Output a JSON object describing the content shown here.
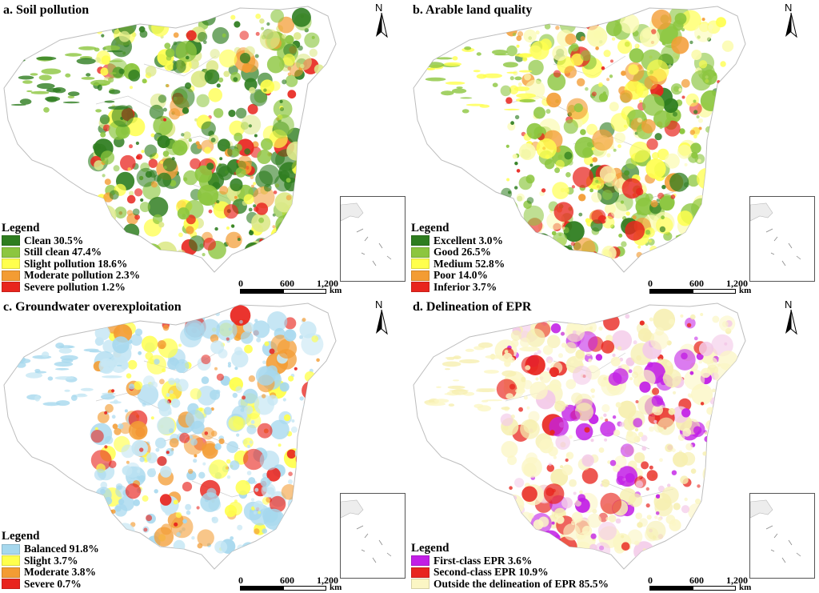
{
  "panels": [
    {
      "title": "a. Soil pollution",
      "legend_title": "Legend",
      "legend": [
        {
          "label": "Clean 30.5%",
          "color": "#2e7d1f"
        },
        {
          "label": "Still clean 47.4%",
          "color": "#8cc63f"
        },
        {
          "label": "Slight pollution 18.6%",
          "color": "#ffff4d"
        },
        {
          "label": "Moderate pollution 2.3%",
          "color": "#f39c34"
        },
        {
          "label": "Severe pollution 1.2%",
          "color": "#e8251e"
        }
      ],
      "palette": [
        "#2e7d1f",
        "#8cc63f",
        "#dde98a",
        "#ffff4d",
        "#f39c34",
        "#e8251e"
      ]
    },
    {
      "title": "b. Arable land quality",
      "legend_title": "Legend",
      "legend": [
        {
          "label": "Excellent 3.0%",
          "color": "#2e7d1f"
        },
        {
          "label": "Good 26.5%",
          "color": "#8cc63f"
        },
        {
          "label": "Medium 52.8%",
          "color": "#ffff4d"
        },
        {
          "label": "Poor 14.0%",
          "color": "#f39c34"
        },
        {
          "label": "Inferior 3.7%",
          "color": "#e8251e"
        }
      ],
      "palette": [
        "#8cc63f",
        "#ffff4d",
        "#fbfbb0",
        "#f39c34",
        "#e8251e",
        "#2e7d1f"
      ]
    },
    {
      "title": "c. Groundwater overexploitation",
      "legend_title": "Legend",
      "legend": [
        {
          "label": "Balanced 91.8%",
          "color": "#a6d8ee"
        },
        {
          "label": "Slight 3.7%",
          "color": "#ffff4d"
        },
        {
          "label": "Moderate 3.8%",
          "color": "#f39c34"
        },
        {
          "label": "Severe 0.7%",
          "color": "#e8251e"
        }
      ],
      "palette": [
        "#a6d8ee",
        "#c7e7f4",
        "#ffff4d",
        "#f39c34",
        "#e8251e"
      ]
    },
    {
      "title": "d. Delineation of EPR",
      "legend_title": "Legend",
      "legend": [
        {
          "label": "First-class EPR 3.6%",
          "color": "#c21ee6"
        },
        {
          "label": "Second-class EPR 10.9%",
          "color": "#e8251e"
        },
        {
          "label": "Outside the delineation of EPR 85.5%",
          "color": "#fbf6c4"
        }
      ],
      "palette": [
        "#fbf6c4",
        "#f6efb0",
        "#c21ee6",
        "#e8251e",
        "#f3c9e8"
      ]
    }
  ],
  "north_label": "N",
  "scale": {
    "ticks": [
      "0",
      "600",
      "1,200"
    ],
    "unit": "km"
  }
}
